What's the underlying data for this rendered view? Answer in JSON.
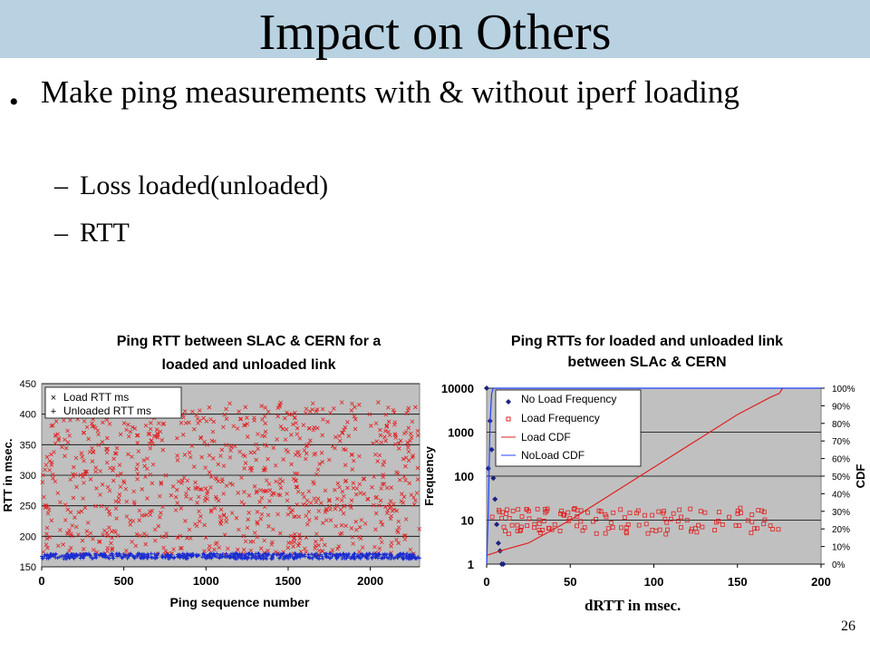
{
  "slide": {
    "title": "Impact on Others",
    "bullet": "Make ping measurements with & without iperf loading",
    "sub_bullets": [
      "Loss loaded(unloaded)",
      "RTT"
    ],
    "page_number": "26"
  },
  "chart_data": [
    {
      "type": "scatter",
      "title": "Ping RTT between SLAC & CERN for a loaded and unloaded link",
      "xlabel": "Ping sequence number",
      "ylabel": "RTT in msec.",
      "xlim": [
        0,
        2300
      ],
      "ylim": [
        150,
        450
      ],
      "x_ticks": [
        0,
        500,
        1000,
        1500,
        2000
      ],
      "y_ticks": [
        150,
        200,
        250,
        300,
        350,
        400,
        450
      ],
      "grid": true,
      "legend_position": "top-left",
      "series": [
        {
          "name": "Load RTT ms",
          "color": "#e02020",
          "marker": "x",
          "description_range": [
            170,
            420
          ],
          "count": 900
        },
        {
          "name": "Unloaded RTT ms",
          "color": "#1a2ccf",
          "marker": "+",
          "description_range": [
            163,
            172
          ],
          "count": 600
        }
      ]
    },
    {
      "type": "line",
      "title": "Ping RTTs for loaded and unloaded link between SLAc & CERN",
      "xlabel": "dRTT in msec.",
      "ylabel": "Frequency",
      "y2label": "CDF",
      "y_scale": "log",
      "xlim": [
        0,
        200
      ],
      "ylim": [
        1,
        10000
      ],
      "y2lim": [
        0,
        1
      ],
      "x_ticks": [
        0,
        50,
        100,
        150,
        200
      ],
      "y_ticks": [
        1,
        10,
        100,
        1000,
        10000
      ],
      "y2_ticks": [
        "0%",
        "10%",
        "20%",
        "30%",
        "40%",
        "50%",
        "60%",
        "70%",
        "80%",
        "90%",
        "100%"
      ],
      "grid": true,
      "legend_position": "top-left",
      "series": [
        {
          "name": "No Load Frequency",
          "color": "#1a237e",
          "marker": "diamond",
          "x": [
            0,
            1,
            2,
            3,
            4,
            5,
            6,
            7,
            8,
            9,
            10
          ],
          "y": [
            10000,
            150,
            1800,
            400,
            90,
            30,
            8,
            3,
            2,
            1,
            1
          ]
        },
        {
          "name": "Load Frequency",
          "color": "#e02020",
          "marker": "square",
          "description_range": [
            3,
            30
          ]
        },
        {
          "name": "Load CDF",
          "color": "#e02020",
          "marker": "none",
          "x": [
            0,
            10,
            25,
            50,
            75,
            100,
            125,
            150,
            170,
            175,
            177
          ],
          "y": [
            0.05,
            0.08,
            0.12,
            0.25,
            0.4,
            0.55,
            0.7,
            0.85,
            0.95,
            0.97,
            1.0
          ]
        },
        {
          "name": "NoLoad CDF",
          "color": "#2040ff",
          "marker": "none",
          "x": [
            0,
            1,
            2,
            3,
            4,
            10,
            200
          ],
          "y": [
            0,
            0.3,
            0.8,
            0.97,
            1.0,
            1.0,
            1.0
          ]
        }
      ]
    }
  ]
}
